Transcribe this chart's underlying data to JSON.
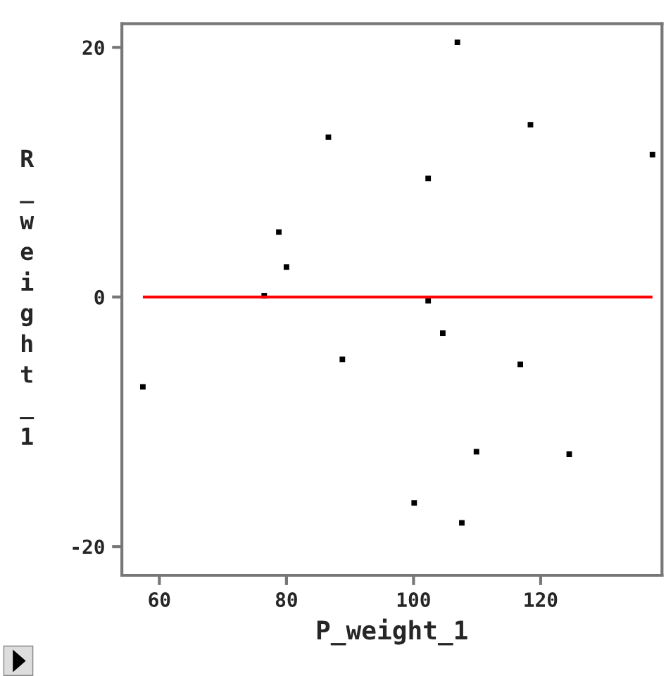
{
  "chart_data": {
    "type": "scatter",
    "xlabel": "P_weight_1",
    "ylabel": "R_weight_1",
    "x": [
      106.9,
      86.6,
      118.4,
      137.6,
      102.3,
      78.8,
      80.0,
      76.5,
      102.3,
      57.4,
      88.8,
      104.6,
      116.8,
      109.9,
      124.5,
      100.1,
      107.6
    ],
    "values": [
      20.4,
      12.8,
      13.8,
      11.4,
      9.5,
      5.2,
      2.4,
      0.1,
      -0.3,
      -7.2,
      -5.0,
      -2.9,
      -5.4,
      -12.4,
      -12.6,
      -16.5,
      -18.1
    ],
    "color": "#000000",
    "marker": "square",
    "xlim": [
      54.1,
      139.1
    ],
    "ylim": [
      -22.3,
      21.9
    ],
    "xticks": [
      60,
      80,
      100,
      120
    ],
    "yticks": [
      -20,
      0,
      20
    ],
    "ref_lines": [
      {
        "axis": "y",
        "value": 0,
        "color": "#ff0000"
      }
    ],
    "grid": false,
    "legend": false
  }
}
